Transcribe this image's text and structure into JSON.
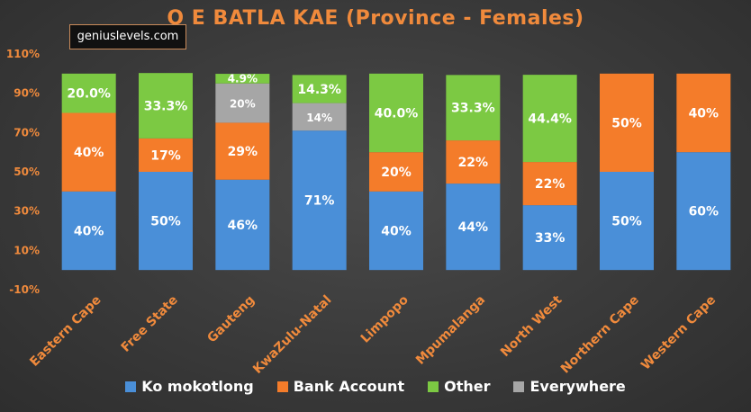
{
  "header": {
    "title": "O E BATLA KAE (Province - Females)",
    "brand": "geniuslevels.com"
  },
  "chart_data": {
    "type": "bar",
    "stacked": true,
    "title": "O E BATLA KAE (Province - Females)",
    "xlabel": "",
    "ylabel": "",
    "ylim": [
      -10,
      110
    ],
    "yticks": [
      "110%",
      "90%",
      "70%",
      "50%",
      "30%",
      "10%",
      "-10%"
    ],
    "ytick_values": [
      110,
      90,
      70,
      50,
      30,
      10,
      -10
    ],
    "grid": false,
    "legend_position": "bottom",
    "categories": [
      "Eastern Cape",
      "Free State",
      "Gauteng",
      "KwaZulu-Natal",
      "Limpopo",
      "Mpumalanga",
      "North West",
      "Northern Cape",
      "Western Cape"
    ],
    "series": [
      {
        "name": "Ko mokotlong",
        "color": "#4a8fd8",
        "values": [
          40,
          50,
          46,
          71,
          40,
          44,
          33,
          50,
          60
        ],
        "labels": [
          "40%",
          "50%",
          "46%",
          "71%",
          "40%",
          "44%",
          "33%",
          "50%",
          "60%"
        ]
      },
      {
        "name": "Bank Account",
        "color": "#f47c2a",
        "values": [
          40,
          17,
          29,
          0,
          20,
          22,
          22,
          50,
          40
        ],
        "labels": [
          "40%",
          "17%",
          "29%",
          "",
          "20%",
          "22%",
          "22%",
          "50%",
          "40%"
        ]
      },
      {
        "name": "Everywhere",
        "color": "#a6a6a6",
        "values": [
          0,
          0,
          20,
          14,
          0,
          0,
          0,
          0,
          0
        ],
        "labels": [
          "",
          "",
          "20%",
          "14%",
          "",
          "",
          "",
          "",
          ""
        ]
      },
      {
        "name": "Other",
        "color": "#7cc943",
        "values": [
          20,
          33.3,
          4.9,
          14.3,
          40,
          33.3,
          44.4,
          0,
          0
        ],
        "labels": [
          "20.0%",
          "33.3%",
          "4.9%",
          "14.3%",
          "40.0%",
          "33.3%",
          "44.4%",
          "",
          ""
        ]
      }
    ],
    "legend_order": [
      "Ko mokotlong",
      "Bank Account",
      "Other",
      "Everywhere"
    ]
  }
}
